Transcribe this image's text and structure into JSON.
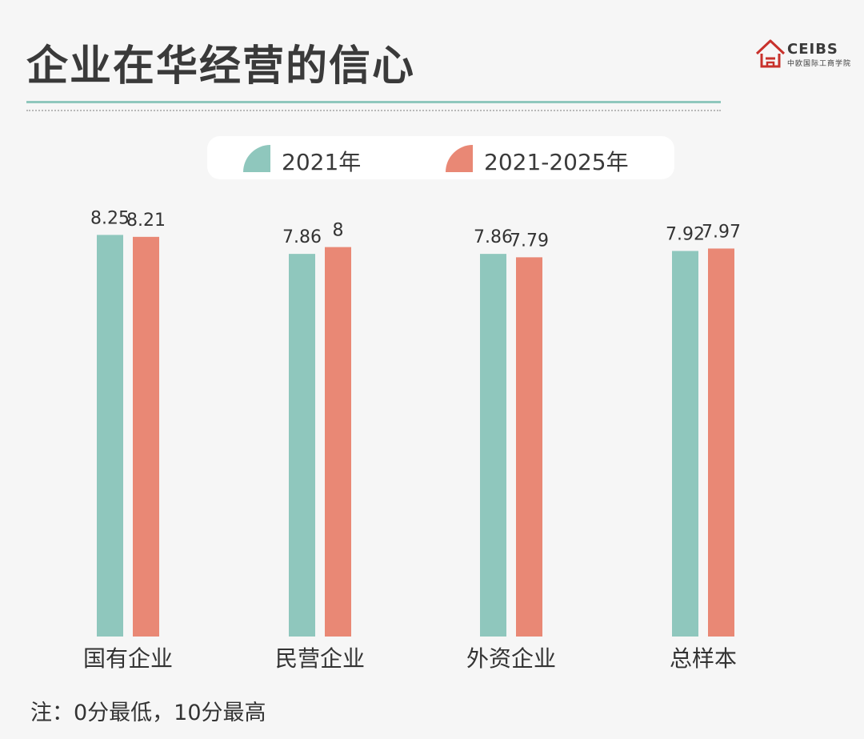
{
  "header": {
    "title": "企业在华经营的信心"
  },
  "logo": {
    "name": "CEIBS",
    "subtitle": "中欧国际工商学院"
  },
  "note": "注：0分最低，10分最高",
  "colors": {
    "series_2021": "#8fc7bd",
    "series_2021_2025": "#e98875"
  },
  "chart_data": {
    "type": "bar",
    "categories": [
      "国有企业",
      "民营企业",
      "外资企业",
      "总样本"
    ],
    "series": [
      {
        "name": "2021年",
        "values": [
          8.25,
          7.86,
          7.86,
          7.92
        ],
        "labels": [
          "8.25",
          "7.86",
          "7.86",
          "7.92"
        ]
      },
      {
        "name": "2021-2025年",
        "values": [
          8.21,
          8,
          7.79,
          7.97
        ],
        "labels": [
          "8.21",
          "8",
          "7.79",
          "7.97"
        ]
      }
    ],
    "ylim": [
      0,
      10
    ],
    "legend": "top-center",
    "grid": false
  }
}
